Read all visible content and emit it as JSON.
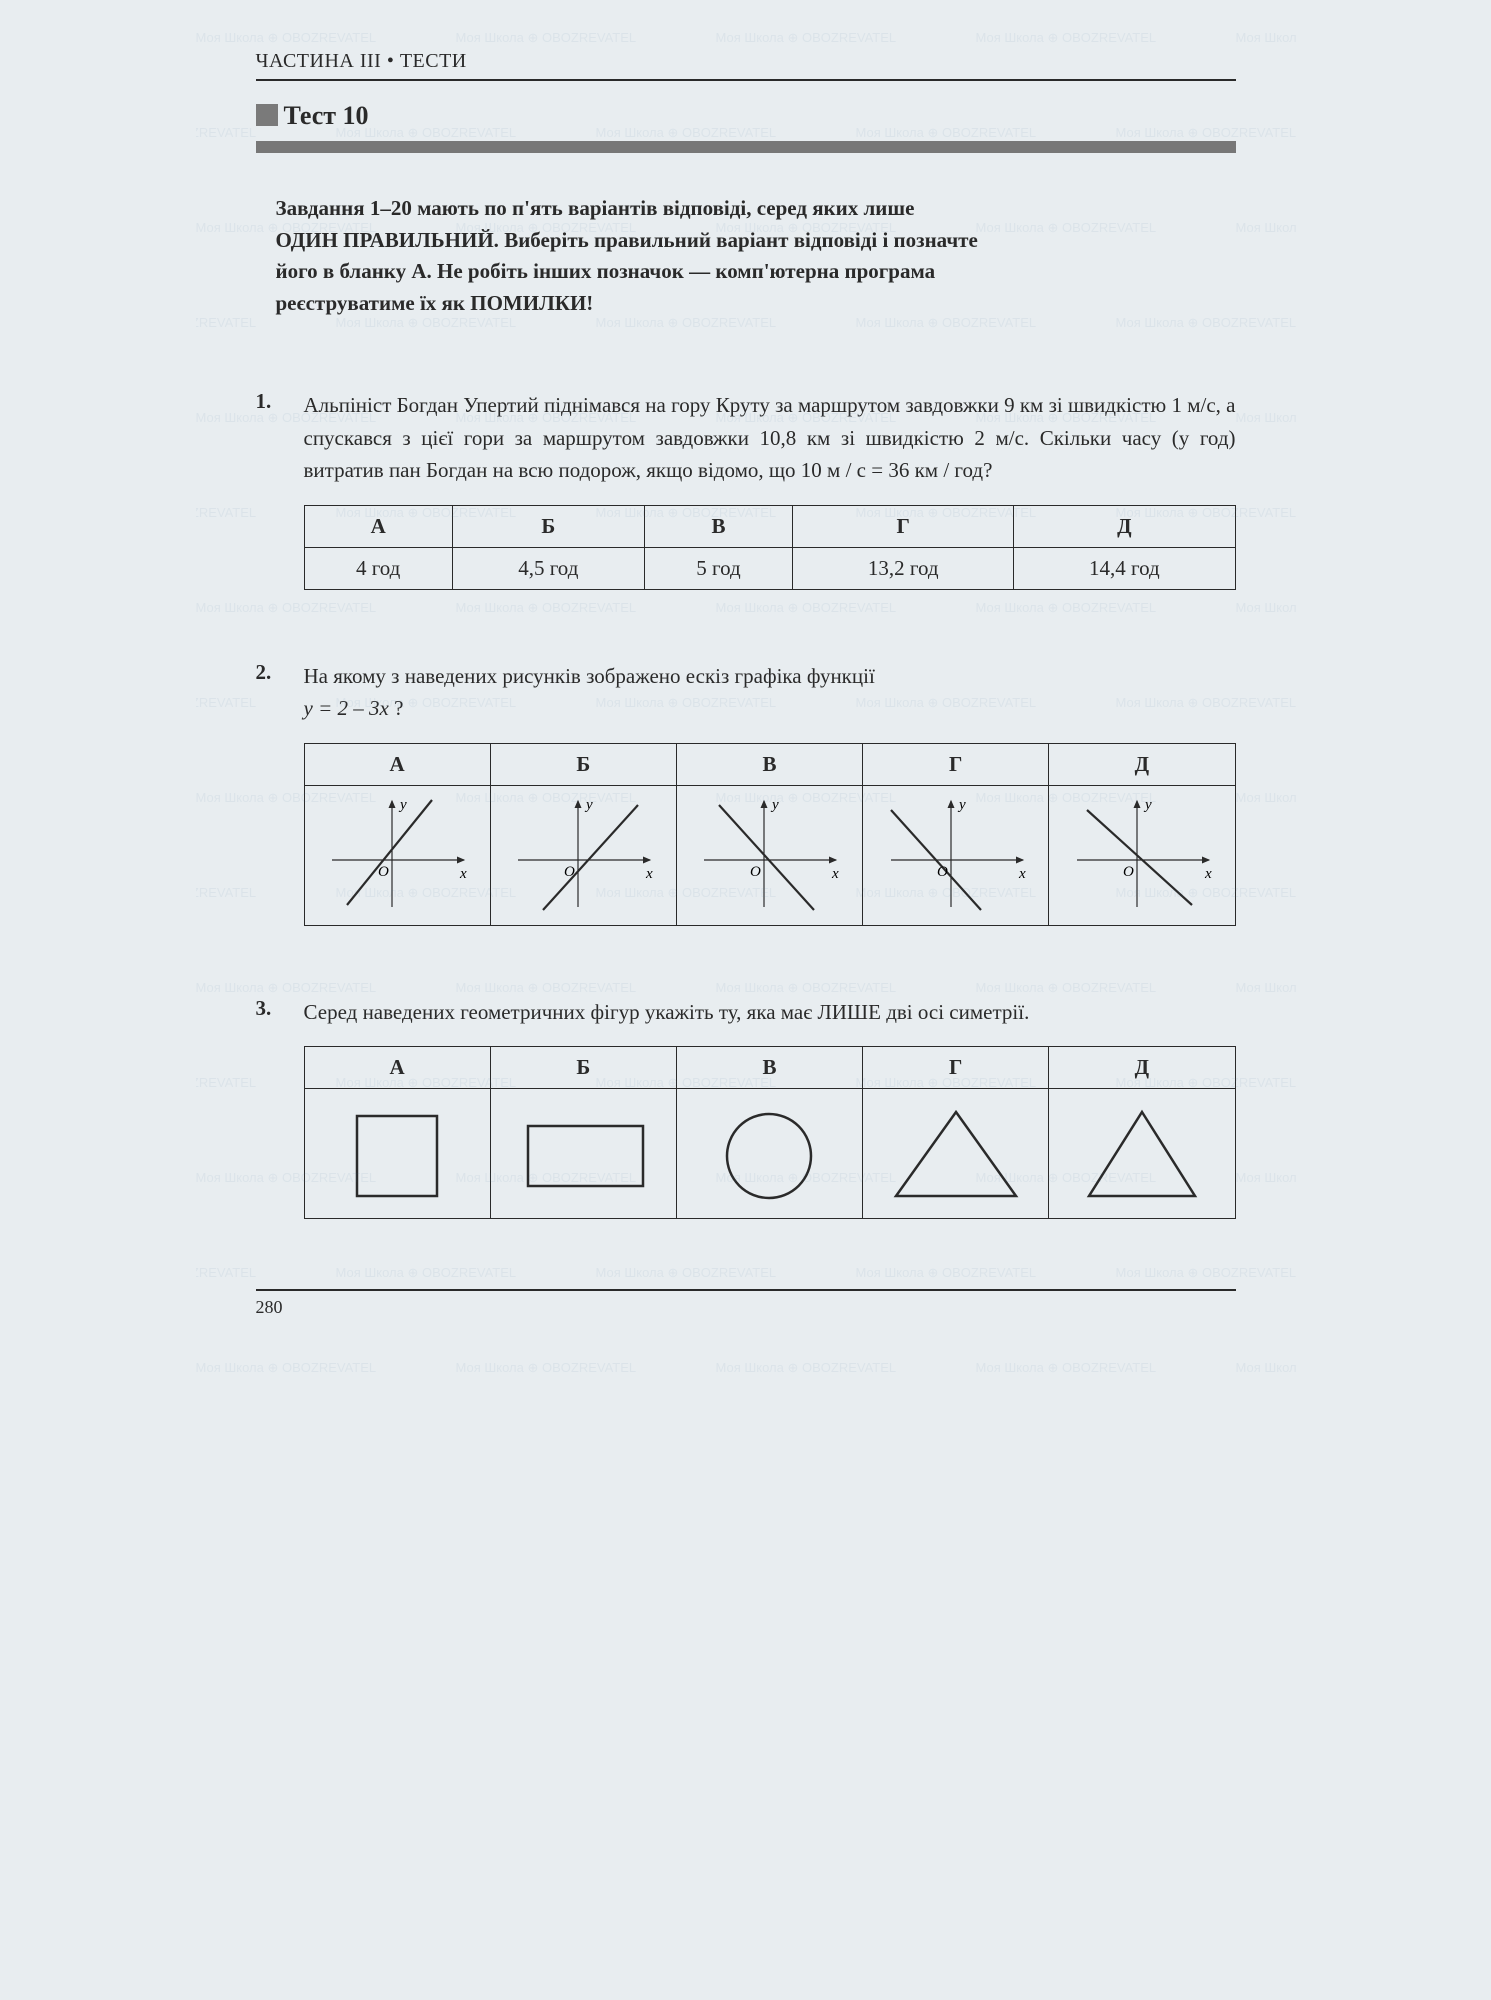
{
  "header": {
    "chapter": "ЧАСТИНА III   •   ТЕСТИ",
    "test_title": "Тест 10"
  },
  "instructions": {
    "line1": "Завдання 1–20 мають по п'ять варіантів відповіді, серед яких лише",
    "line2a": "ОДИН ПРАВИЛЬНИЙ.",
    "line2b": " Виберіть правильний варіант відповіді і позначте",
    "line3": "його в бланку А. Не робіть інших позначок — комп'ютерна програма",
    "line4a": "реєструватиме їх як ",
    "line4b": "ПОМИЛКИ!"
  },
  "columns": [
    "А",
    "Б",
    "В",
    "Г",
    "Д"
  ],
  "q1": {
    "num": "1.",
    "text": "Альпініст Богдан Упертий піднімався на гору Круту за маршрутом завдовжки 9 км зі швидкістю 1 м/с, а спускався з цієї гори за маршрутом завдовжки 10,8 км зі швидкістю 2 м/с. Скільки часу (у год) витратив пан Богдан на всю подорож, якщо відомо, що 10 м / с = 36 км / год?",
    "answers": [
      "4 год",
      "4,5 год",
      "5 год",
      "13,2 год",
      "14,4 год"
    ]
  },
  "q2": {
    "num": "2.",
    "text_a": "На якому з наведених рисунків зображено ескіз графіка функції ",
    "text_b": "y = 2 – 3x",
    "text_c": " ?",
    "graphs": [
      {
        "slope": "positive",
        "y_intercept": "positive",
        "crosses": "upper_right"
      },
      {
        "slope": "positive",
        "y_intercept": "negative"
      },
      {
        "slope": "negative",
        "y_intercept": "positive"
      },
      {
        "slope": "negative",
        "y_intercept": "negative_left"
      },
      {
        "slope": "negative",
        "y_intercept": "zero_through"
      }
    ],
    "axis_labels": {
      "x": "x",
      "y": "y",
      "origin": "O"
    },
    "style": {
      "axis_color": "#2a2a2a",
      "line_color": "#2a2a2a",
      "axis_width": 1.2,
      "line_width": 2.2
    }
  },
  "q3": {
    "num": "3.",
    "text": "Серед наведених геометричних фігур укажіть ту, яка має ЛИШЕ дві осі симетрії.",
    "shapes": [
      {
        "type": "square"
      },
      {
        "type": "rectangle"
      },
      {
        "type": "circle"
      },
      {
        "type": "isoceles_triangle"
      },
      {
        "type": "equilateral_triangle"
      }
    ],
    "style": {
      "stroke": "#2a2a2a",
      "stroke_width": 2.5,
      "fill": "none"
    }
  },
  "footer": {
    "page_num": "280"
  },
  "watermark": {
    "text": "Моя Школа ⊕ OBOZREVATEL",
    "color": "#4a7aa0"
  },
  "colors": {
    "bg": "#e8edf0",
    "text": "#2a2a2a",
    "bar": "#777777"
  }
}
